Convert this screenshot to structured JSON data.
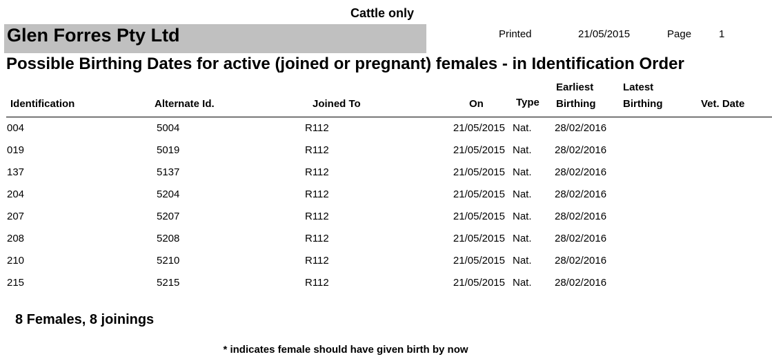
{
  "report": {
    "species_label": "Cattle only",
    "company_name": "Glen Forres Pty Ltd",
    "printed_label": "Printed",
    "printed_date": "21/05/2015",
    "page_label": "Page",
    "page_number": "1",
    "title": "Possible Birthing Dates for active (joined or pregnant) females - in Identification Order"
  },
  "table": {
    "headers": {
      "identification": "Identification",
      "alternate_id": "Alternate Id.",
      "joined_to": "Joined To",
      "on": "On",
      "type": "Type",
      "earliest_line1": "Earliest",
      "earliest_line2": "Birthing",
      "latest_line1": "Latest",
      "latest_line2": "Birthing",
      "vet_date": "Vet. Date"
    },
    "rows": [
      {
        "identification": "004",
        "alternate_id": "5004",
        "joined_to": "R112",
        "on": "21/05/2015",
        "type": "Nat.",
        "earliest": "28/02/2016",
        "latest": "",
        "vet_date": ""
      },
      {
        "identification": "019",
        "alternate_id": "5019",
        "joined_to": "R112",
        "on": "21/05/2015",
        "type": "Nat.",
        "earliest": "28/02/2016",
        "latest": "",
        "vet_date": ""
      },
      {
        "identification": "137",
        "alternate_id": "5137",
        "joined_to": "R112",
        "on": "21/05/2015",
        "type": "Nat.",
        "earliest": "28/02/2016",
        "latest": "",
        "vet_date": ""
      },
      {
        "identification": "204",
        "alternate_id": "5204",
        "joined_to": "R112",
        "on": "21/05/2015",
        "type": "Nat.",
        "earliest": "28/02/2016",
        "latest": "",
        "vet_date": ""
      },
      {
        "identification": "207",
        "alternate_id": "5207",
        "joined_to": "R112",
        "on": "21/05/2015",
        "type": "Nat.",
        "earliest": "28/02/2016",
        "latest": "",
        "vet_date": ""
      },
      {
        "identification": "208",
        "alternate_id": "5208",
        "joined_to": "R112",
        "on": "21/05/2015",
        "type": "Nat.",
        "earliest": "28/02/2016",
        "latest": "",
        "vet_date": ""
      },
      {
        "identification": "210",
        "alternate_id": "5210",
        "joined_to": "R112",
        "on": "21/05/2015",
        "type": "Nat.",
        "earliest": "28/02/2016",
        "latest": "",
        "vet_date": ""
      },
      {
        "identification": "215",
        "alternate_id": "5215",
        "joined_to": "R112",
        "on": "21/05/2015",
        "type": "Nat.",
        "earliest": "28/02/2016",
        "latest": "",
        "vet_date": ""
      }
    ]
  },
  "summary": "8 Females, 8 joinings",
  "footnote": "* indicates female should have given birth by now"
}
